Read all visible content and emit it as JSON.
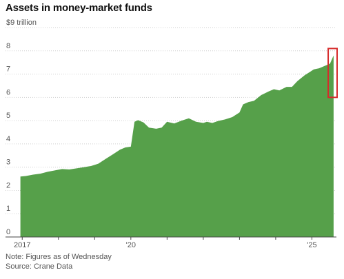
{
  "chart_data": {
    "type": "area",
    "title": "Assets in money-market funds",
    "ylabel_unit": "$9 trillion",
    "ylim": [
      0,
      9
    ],
    "y_ticks": [
      {
        "value": 9,
        "label": "$9 trillion"
      },
      {
        "value": 8,
        "label": "8"
      },
      {
        "value": 7,
        "label": "7"
      },
      {
        "value": 6,
        "label": "6"
      },
      {
        "value": 5,
        "label": "5"
      },
      {
        "value": 4,
        "label": "4"
      },
      {
        "value": 3,
        "label": "3"
      },
      {
        "value": 2,
        "label": "2"
      },
      {
        "value": 1,
        "label": "1"
      },
      {
        "value": 0,
        "label": "0"
      }
    ],
    "x_ticks": [
      {
        "value": 2017.0,
        "label": "2017"
      },
      {
        "value": 2020.0,
        "label": "'20"
      },
      {
        "value": 2025.0,
        "label": "'25"
      }
    ],
    "xlim": [
      2016.9,
      2025.62
    ],
    "fill_color": "#56a04a",
    "highlight_color": "#d62b2b",
    "highlight_x_range": [
      2025.45,
      2025.75
    ],
    "highlight_y_range": [
      6.0,
      8.1
    ],
    "series": [
      {
        "x": [
          2016.95,
          2017.1,
          2017.3,
          2017.5,
          2017.7,
          2017.9,
          2018.1,
          2018.3,
          2018.5,
          2018.7,
          2018.9,
          2019.1,
          2019.3,
          2019.5,
          2019.7,
          2019.85,
          2020.0,
          2020.1,
          2020.2,
          2020.35,
          2020.5,
          2020.7,
          2020.85,
          2021.0,
          2021.2,
          2021.4,
          2021.6,
          2021.8,
          2022.0,
          2022.1,
          2022.25,
          2022.4,
          2022.6,
          2022.8,
          2023.0,
          2023.1,
          2023.25,
          2023.4,
          2023.6,
          2023.8,
          2023.95,
          2024.1,
          2024.3,
          2024.45,
          2024.6,
          2024.8,
          2024.95,
          2025.05,
          2025.2,
          2025.35,
          2025.5,
          2025.6
        ],
        "y": [
          2.6,
          2.62,
          2.68,
          2.72,
          2.8,
          2.86,
          2.92,
          2.9,
          2.95,
          3.0,
          3.05,
          3.15,
          3.35,
          3.55,
          3.75,
          3.85,
          3.88,
          4.95,
          5.02,
          4.92,
          4.7,
          4.65,
          4.7,
          4.95,
          4.88,
          5.0,
          5.1,
          4.95,
          4.9,
          4.95,
          4.9,
          4.98,
          5.05,
          5.15,
          5.35,
          5.7,
          5.8,
          5.85,
          6.1,
          6.25,
          6.35,
          6.3,
          6.45,
          6.45,
          6.7,
          6.95,
          7.1,
          7.2,
          7.25,
          7.35,
          7.45,
          7.8
        ]
      }
    ],
    "notes": [
      "Note: Figures as of Wednesday",
      "Source: Crane Data"
    ]
  }
}
